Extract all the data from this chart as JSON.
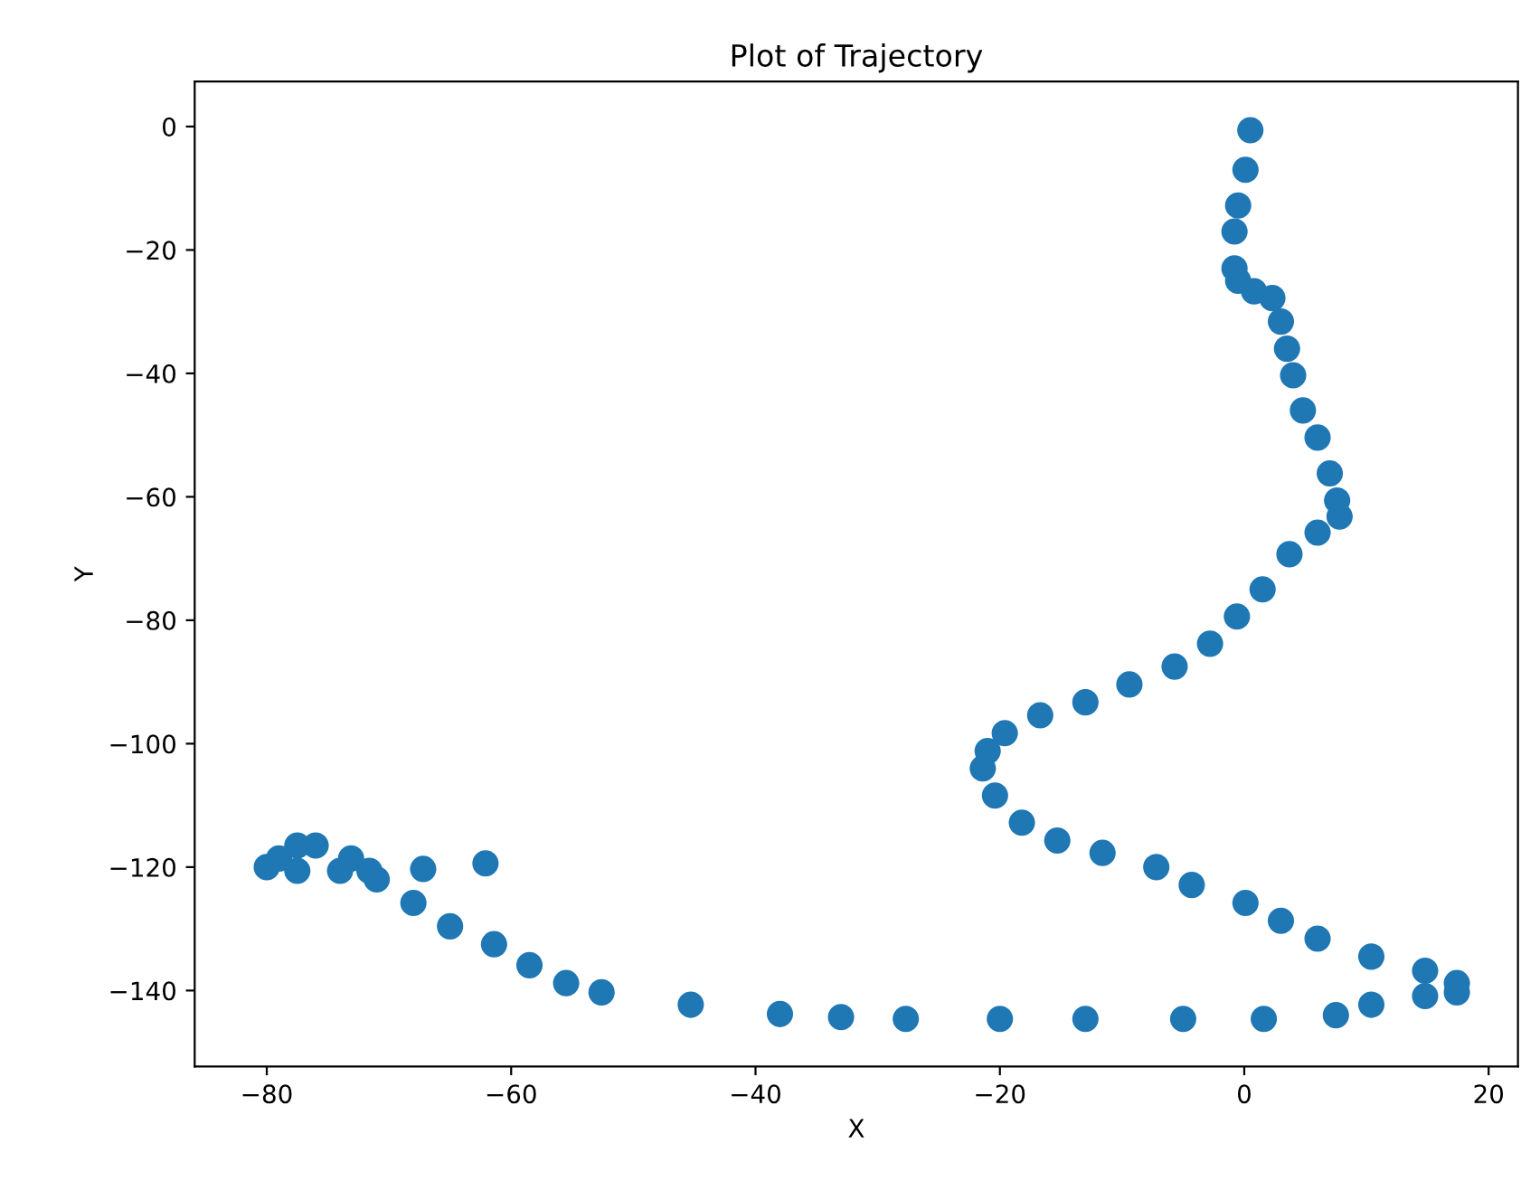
{
  "chart_data": {
    "type": "scatter",
    "title": "Plot of Trajectory",
    "xlabel": "X",
    "ylabel": "Y",
    "x": [
      0.5,
      0.1,
      -0.5,
      -0.8,
      -0.8,
      -0.5,
      0.8,
      2.3,
      3,
      3.5,
      4,
      4.8,
      6,
      7,
      7.6,
      7.8,
      6,
      3.7,
      1.5,
      -0.6,
      -2.8,
      -5.7,
      -9.4,
      -13,
      -16.7,
      -19.6,
      -21,
      -21.4,
      -20.4,
      -18.2,
      -15.3,
      -11.6,
      -7.2,
      -4.3,
      0.1,
      3,
      6,
      10.4,
      14.8,
      17.4,
      17.4,
      14.8,
      10.4,
      7.5,
      1.6,
      -5,
      -13,
      -20,
      -27.7,
      -33,
      -38,
      -45.3,
      -52.6,
      -55.5,
      -58.5,
      -61.4,
      -65,
      -68,
      -71,
      -73.1,
      -76,
      -77.5,
      -79,
      -80,
      -77.5,
      -74,
      -71.6,
      -67.2,
      -62.1
    ],
    "series": [
      {
        "color": "#1f77b4",
        "values": [
          -0.6,
          -7,
          -12.8,
          -17,
          -23,
          -25,
          -26.7,
          -27.8,
          -31.6,
          -36,
          -40.3,
          -46,
          -50.4,
          -56.2,
          -60.6,
          -63.2,
          -65.8,
          -69.3,
          -75,
          -79.4,
          -83.8,
          -87.5,
          -90.4,
          -93.3,
          -95.4,
          -98.3,
          -101.2,
          -104,
          -108.4,
          -112.8,
          -115.7,
          -117.7,
          -120,
          -122.9,
          -125.8,
          -128.7,
          -131.6,
          -134.5,
          -136.8,
          -138.8,
          -140.3,
          -140.9,
          -142.3,
          -144,
          -144.6,
          -144.6,
          -144.6,
          -144.6,
          -144.6,
          -144.3,
          -143.8,
          -142.3,
          -140.3,
          -138.8,
          -135.9,
          -132.5,
          -129.6,
          -125.8,
          -122,
          -118.6,
          -116.5,
          -116.5,
          -118.6,
          -120,
          -120.6,
          -120.6,
          -120.6,
          -120.3,
          -119.4
        ]
      }
    ],
    "xlim": [
      -85.9,
      22.4
    ],
    "ylim": [
      -152.3,
      7.3
    ],
    "xticks": [
      -80,
      -60,
      -40,
      -20,
      0,
      20
    ],
    "yticks": [
      0,
      -20,
      -40,
      -60,
      -80,
      -100,
      -120,
      -140
    ],
    "marker": "circle",
    "grid": false,
    "legend": false
  }
}
